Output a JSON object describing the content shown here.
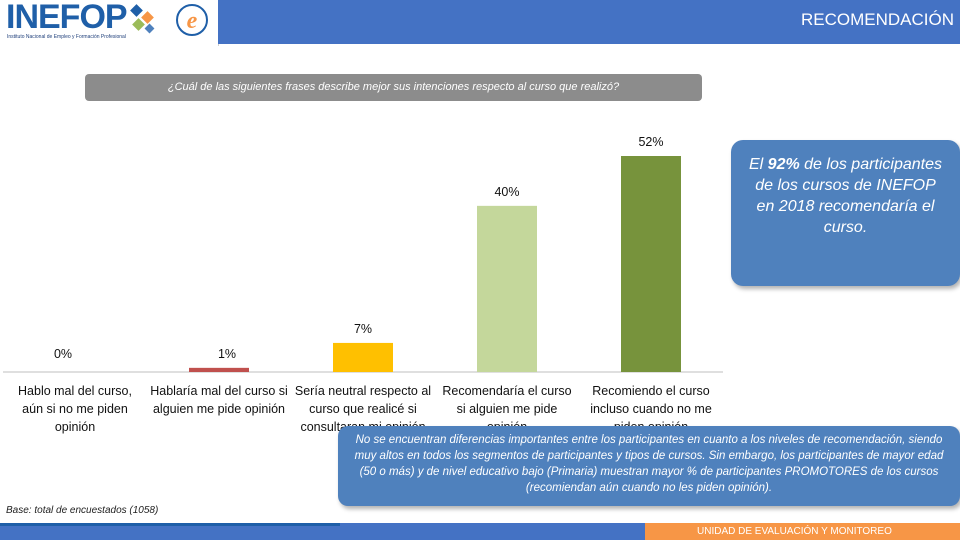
{
  "header": {
    "logo_text": "INEFOP",
    "logo_subtitle": "Instituto Nacional de Empleo y Formación Profesional",
    "title": "RECOMENDACIÓN"
  },
  "question": "¿Cuál de las siguientes frases describe mejor sus intenciones respecto al curso que realizó?",
  "callout": {
    "prefix": "El ",
    "highlight": "92%",
    "suffix": " de los participantes de los cursos de INEFOP en 2018 recomendaría el curso."
  },
  "note": "No se encuentran diferencias importantes entre los participantes en cuanto a los niveles de recomendación, siendo muy altos en todos los segmentos de participantes y tipos de cursos. Sin embargo, los participantes de mayor edad (50 o más) y de nivel educativo bajo (Primaria) muestran mayor % de participantes PROMOTORES de los cursos (recomiendan aún cuando no les piden opinión).",
  "base": "Base: total de encuestados (1058)",
  "footer": {
    "unit": "UNIDAD DE EVALUACIÓN Y MONITOREO"
  },
  "colors": {
    "header_blue": "#4472c4",
    "callout_blue": "#4f81bd",
    "footer_orange": "#f79646"
  },
  "chart_data": {
    "type": "bar",
    "categories": [
      [
        "Hablo mal del curso,",
        "aún si no me piden",
        "opinión"
      ],
      [
        "Hablaría mal del curso si",
        "alguien me pide opinión"
      ],
      [
        "Sería neutral respecto al",
        "curso que realicé si",
        "consultaran mi opinión"
      ],
      [
        "Recomendaría el curso",
        "si alguien me pide",
        "opinión"
      ],
      [
        "Recomiendo el curso",
        "incluso cuando no me",
        "piden opinión"
      ]
    ],
    "values": [
      0,
      1,
      7,
      40,
      52
    ],
    "value_labels": [
      "0%",
      "1%",
      "7%",
      "40%",
      "52%"
    ],
    "colors": [
      "#c0504d",
      "#c0504d",
      "#ffc000",
      "#c4d79b",
      "#77933c"
    ],
    "ylim": [
      0,
      52
    ],
    "grid": false,
    "legend": "none"
  }
}
